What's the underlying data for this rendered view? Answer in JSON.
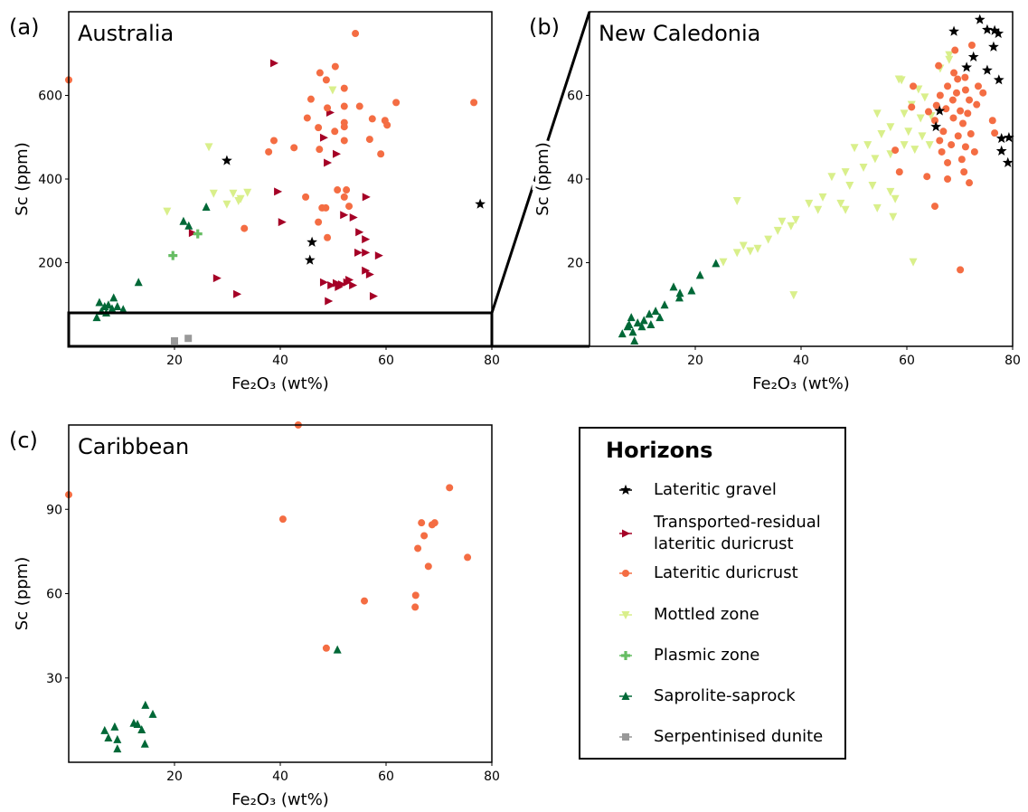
{
  "chart_data": [
    {
      "type": "scatter",
      "label": "(a)",
      "title": "Australia",
      "x_label": "Fe₂O₃ (wt%)",
      "y_label": "Sc (ppm)",
      "xlim": [
        0,
        80
      ],
      "ylim": [
        0,
        800
      ],
      "xticks": [
        20,
        40,
        60,
        80
      ],
      "yticks": [
        200,
        400,
        600
      ],
      "legend_title": "Horizons",
      "series": [
        {
          "name": "Lateritic gravel",
          "color": "#000000",
          "marker": "star",
          "x": [
            29.9,
            77.8,
            46,
            45.6
          ],
          "values": [
            444,
            340,
            249,
            206
          ]
        },
        {
          "name": "Transported-residual\nlateritic duricrust",
          "color": "#a50026",
          "marker": "triangle-right",
          "x": [
            38.8,
            49.4,
            48.2,
            50.6,
            48.9,
            39.5,
            40.3,
            56.2,
            52,
            53.8,
            54.9,
            56.1,
            54.7,
            56.1,
            58.6,
            56.1,
            56.9,
            23.4,
            28,
            31.8,
            57.6,
            49.1,
            48.2,
            49.6,
            50.6,
            51.6,
            52.6,
            53.7,
            51,
            53
          ],
          "values": [
            677,
            559,
            499,
            460,
            439,
            370,
            297,
            357,
            314,
            308,
            273,
            256,
            224,
            224,
            217,
            181,
            172,
            271,
            163,
            125,
            120,
            108,
            153,
            146,
            151,
            148,
            153,
            146,
            142,
            159
          ]
        },
        {
          "name": "Lateritic duricrust",
          "color": "#f46d43",
          "marker": "circle",
          "x": [
            0,
            54.2,
            47.5,
            50.4,
            48.7,
            45.8,
            52.1,
            52.1,
            55,
            48.9,
            61.9,
            76.6,
            45.1,
            57.4,
            59.8,
            60.2,
            52.1,
            52.1,
            50.3,
            47.2,
            38.8,
            56.9,
            52.1,
            42.6,
            37.8,
            47.4,
            59,
            50.8,
            52.5,
            44.8,
            52.1,
            53,
            47.9,
            48.6,
            47.2,
            33.2,
            48.9
          ],
          "values": [
            637,
            748,
            654,
            669,
            637,
            591,
            617,
            574,
            574,
            570,
            583,
            583,
            546,
            544,
            540,
            529,
            535,
            525,
            514,
            523,
            492,
            495,
            492,
            475,
            465,
            471,
            460,
            374,
            374,
            357,
            357,
            335,
            331,
            331,
            297,
            282,
            260
          ]
        },
        {
          "name": "Mottled zone",
          "color": "#d9ef8b",
          "marker": "triangle-down",
          "x": [
            49.9,
            26.5,
            18.6,
            27.4,
            31.1,
            33.8,
            32.5,
            29.9,
            32.1
          ],
          "values": [
            613,
            477,
            323,
            366,
            366,
            368,
            353,
            340,
            348
          ]
        },
        {
          "name": "Plasmic zone",
          "color": "#66bd63",
          "marker": "plus",
          "x": [
            19.7,
            24.4
          ],
          "values": [
            217,
            269
          ]
        },
        {
          "name": "Saprolite-saprock",
          "color": "#006837",
          "marker": "triangle-up",
          "x": [
            26,
            21.7,
            22.7,
            13.2,
            5.3,
            5.8,
            6.8,
            7.5,
            8.2,
            8.5,
            9.2,
            10.3,
            6.2,
            7.1
          ],
          "values": [
            333,
            299,
            288,
            153,
            69,
            105,
            95,
            99,
            90,
            116,
            95,
            88,
            84,
            80
          ]
        },
        {
          "name": "Serpentinised dunite",
          "color": "#999999",
          "marker": "square",
          "x": [
            20,
            22.6
          ],
          "values": [
            13,
            19
          ]
        }
      ]
    },
    {
      "type": "scatter",
      "label": "(b)",
      "title": "New Caledonia",
      "x_label": "Fe₂O₃ (wt%)",
      "y_label": "Sc (ppm)",
      "xlim": [
        0,
        80
      ],
      "ylim": [
        0,
        80
      ],
      "xticks": [
        20,
        40,
        60,
        80
      ],
      "yticks": [
        20,
        40,
        60
      ],
      "series": [
        {
          "color": "#d9ef8b",
          "marker": "triangle-down",
          "x": [
            68,
            58.5,
            59,
            62.2,
            63.4,
            60.9,
            59.5,
            62.6,
            64.6,
            60.3,
            62.9,
            59.5,
            61.5,
            64.3,
            56.9,
            55.2,
            52.6,
            50.1,
            54,
            56.9,
            51.8,
            48.4,
            45.8,
            49.2,
            53.5,
            56.9,
            44.1,
            41.5,
            47.5,
            57.8,
            43.2,
            48.4,
            54.4,
            39,
            36.4,
            38.1,
            35.6,
            33.8,
            31.8,
            30.4,
            29.1,
            27.9,
            25.3,
            27.9,
            38.6,
            57.4,
            61.2,
            66.3,
            54.4,
            68
          ],
          "values": [
            69.7,
            63.9,
            63.7,
            61.5,
            59.6,
            57.8,
            55.7,
            54.6,
            55.1,
            51.4,
            50.3,
            48.2,
            47.1,
            48.2,
            52.5,
            50.8,
            48.2,
            47.5,
            44.9,
            46,
            42.8,
            41.7,
            40.6,
            38.5,
            38.5,
            37,
            35.7,
            34.2,
            34.2,
            35.3,
            32.7,
            32.7,
            33.1,
            30.3,
            29.9,
            28.8,
            27.7,
            25.6,
            23.4,
            22.8,
            24.1,
            22.4,
            20.2,
            34.8,
            12.3,
            31,
            20.2,
            66.5,
            55.7,
            68.6
          ]
        },
        {
          "color": "#f46d43",
          "marker": "circle",
          "x": [
            72.3,
            69.1,
            66,
            68.9,
            69.6,
            71,
            73.5,
            67.7,
            69.4,
            71.1,
            74.4,
            66.3,
            68.7,
            71.8,
            73.2,
            65.6,
            67.4,
            70.1,
            71.5,
            60.9,
            64.1,
            68.8,
            70.6,
            65.3,
            76.2,
            76.6,
            66.9,
            69.7,
            72.1,
            66.2,
            68.4,
            71.1,
            57.8,
            72.8,
            66.6,
            70.4,
            67.7,
            58.6,
            63.8,
            70.8,
            67.7,
            71.8,
            65.3,
            70.1,
            61.2
          ],
          "values": [
            72,
            70.8,
            67.1,
            65.4,
            63.9,
            64.3,
            62.2,
            62.2,
            60.6,
            61.3,
            60.6,
            60,
            58.9,
            58.9,
            57.8,
            57.6,
            56.8,
            56.3,
            55.7,
            57.2,
            56.1,
            54.6,
            53.3,
            54,
            54,
            51,
            51.4,
            50.3,
            50.8,
            49.2,
            48.2,
            47.7,
            46.9,
            46.5,
            46.5,
            44.7,
            43.9,
            41.7,
            40.6,
            41.7,
            40,
            39.1,
            33.5,
            18.3,
            62.2
          ]
        },
        {
          "color": "#000000",
          "marker": "star",
          "x": [
            73.8,
            75.2,
            76.6,
            77.3,
            68.9,
            76.4,
            72.6,
            71.3,
            75.2,
            77.4,
            66.2,
            77.9,
            79.3,
            77.9,
            79.1,
            65.5
          ],
          "values": [
            78.1,
            75.7,
            75.5,
            74.8,
            75.3,
            71.6,
            69.2,
            66.7,
            66,
            63.7,
            56.3,
            49.7,
            49.9,
            46.7,
            43.9,
            52.5
          ]
        },
        {
          "color": "#006837",
          "marker": "triangle-up",
          "x": [
            23.9,
            20.9,
            19.3,
            17.1,
            15.9,
            17,
            14.2,
            12.5,
            11.3,
            10.3,
            9.1,
            7.9,
            7.2,
            8.2,
            6.2,
            8.5,
            9.9,
            11.6,
            13.3,
            7.5
          ],
          "values": [
            19.8,
            17,
            13.3,
            12.7,
            14.2,
            11.6,
            9.9,
            8.4,
            7.7,
            6.2,
            5.6,
            6.9,
            4.7,
            3.4,
            3,
            1.3,
            4.7,
            5.2,
            6.9,
            5.2
          ]
        }
      ]
    },
    {
      "type": "scatter",
      "label": "(c)",
      "title": "Caribbean",
      "x_label": "Fe₂O₃ (wt%)",
      "y_label": "Sc (ppm)",
      "xlim": [
        0,
        80
      ],
      "ylim": [
        0,
        120
      ],
      "xticks": [
        20,
        40,
        60,
        80
      ],
      "yticks": [
        30,
        60,
        90
      ],
      "series": [
        {
          "color": "#f46d43",
          "marker": "circle",
          "x": [
            0,
            43.4,
            40.5,
            72,
            66.7,
            69.2,
            68.7,
            67.2,
            66,
            75.4,
            68,
            65.6,
            55.9,
            65.5,
            48.7
          ],
          "values": [
            95.2,
            120,
            86.5,
            97.7,
            85.2,
            85.2,
            84.5,
            80.6,
            76.1,
            72.9,
            69.7,
            59.4,
            57.4,
            55.2,
            40.6
          ]
        },
        {
          "color": "#006837",
          "marker": "triangle-up",
          "x": [
            50.8,
            14.5,
            15.9,
            12.3,
            13,
            13.8,
            8.7,
            6.8,
            7.5,
            9.2,
            14.4,
            9.2
          ],
          "values": [
            40,
            20.3,
            17.1,
            13.9,
            13.5,
            11.6,
            12.6,
            11.3,
            8.7,
            8.1,
            6.5,
            4.8
          ]
        }
      ]
    }
  ]
}
